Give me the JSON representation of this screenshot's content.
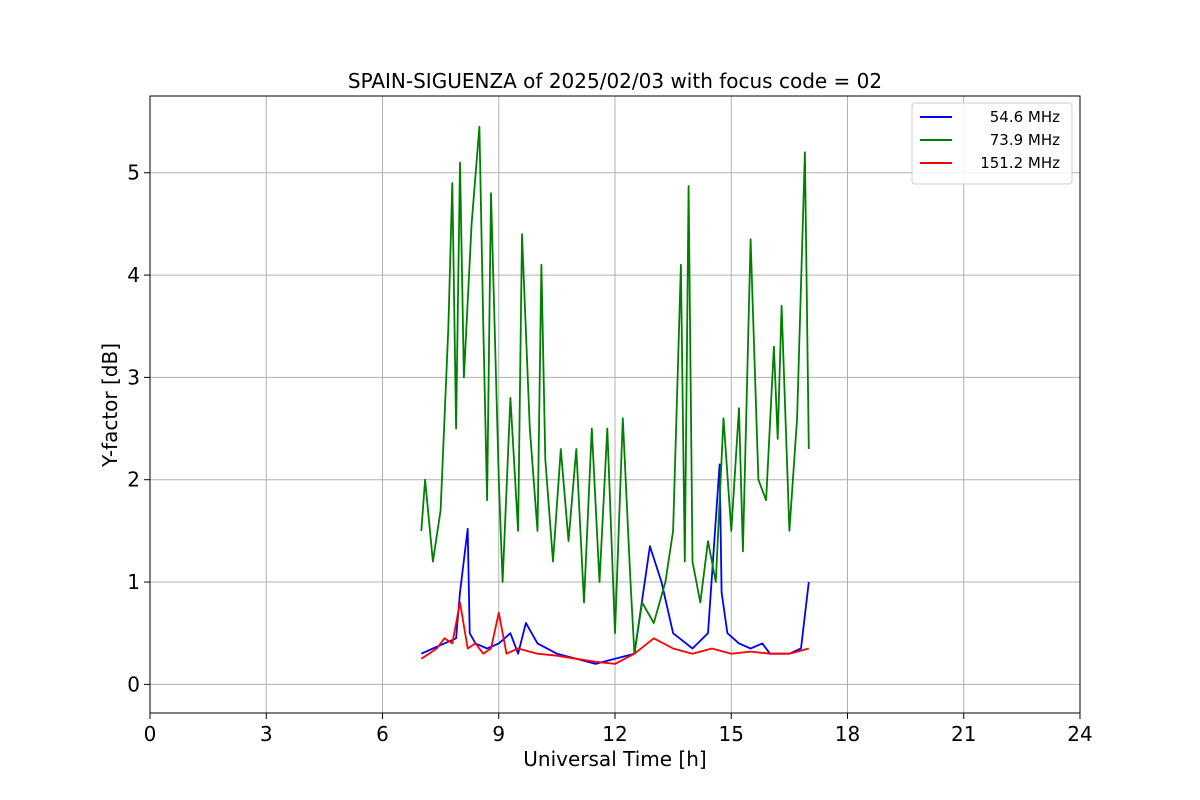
{
  "chart_data": {
    "type": "line",
    "title": "SPAIN-SIGUENZA of 2025/02/03 with focus code = 02",
    "xlabel": "Universal Time [h]",
    "ylabel": "Y-factor [dB]",
    "xlim": [
      0,
      24
    ],
    "ylim": [
      -0.28,
      5.75
    ],
    "xticks": [
      0,
      3,
      6,
      9,
      12,
      15,
      18,
      21,
      24
    ],
    "yticks": [
      0,
      1,
      2,
      3,
      4,
      5
    ],
    "xtick_labels": [
      "0",
      "3",
      "6",
      "9",
      "12",
      "15",
      "18",
      "21",
      "24"
    ],
    "ytick_labels": [
      "0",
      "1",
      "2",
      "3",
      "4",
      "5"
    ],
    "grid": true,
    "legend_position": "top-right",
    "series": [
      {
        "name": "54.6 MHz",
        "color": "#0000ff",
        "x": [
          7.0,
          7.3,
          7.6,
          7.9,
          8.0,
          8.2,
          8.25,
          8.4,
          8.7,
          9.0,
          9.3,
          9.5,
          9.7,
          10.0,
          10.5,
          11.0,
          11.5,
          12.0,
          12.5,
          12.9,
          13.2,
          13.5,
          14.0,
          14.4,
          14.7,
          14.75,
          14.9,
          15.2,
          15.5,
          15.8,
          16.0,
          16.5,
          16.8,
          17.0
        ],
        "y": [
          0.3,
          0.35,
          0.4,
          0.45,
          0.9,
          1.52,
          0.5,
          0.4,
          0.35,
          0.4,
          0.5,
          0.3,
          0.6,
          0.4,
          0.3,
          0.25,
          0.2,
          0.25,
          0.3,
          1.35,
          1.0,
          0.5,
          0.35,
          0.5,
          2.15,
          0.9,
          0.5,
          0.4,
          0.35,
          0.4,
          0.3,
          0.3,
          0.35,
          1.0
        ]
      },
      {
        "name": "73.9 MHz",
        "color": "#008000",
        "x": [
          7.0,
          7.1,
          7.3,
          7.5,
          7.7,
          7.8,
          7.9,
          8.0,
          8.1,
          8.3,
          8.5,
          8.6,
          8.7,
          8.8,
          9.0,
          9.1,
          9.3,
          9.5,
          9.6,
          9.8,
          10.0,
          10.1,
          10.2,
          10.4,
          10.6,
          10.8,
          11.0,
          11.2,
          11.4,
          11.6,
          11.8,
          12.0,
          12.2,
          12.4,
          12.5,
          12.7,
          13.0,
          13.3,
          13.5,
          13.7,
          13.8,
          13.9,
          14.0,
          14.2,
          14.4,
          14.6,
          14.8,
          15.0,
          15.2,
          15.3,
          15.5,
          15.7,
          15.9,
          16.1,
          16.2,
          16.3,
          16.5,
          16.7,
          16.9,
          17.0
        ],
        "y": [
          1.5,
          2.0,
          1.2,
          1.7,
          3.5,
          4.9,
          2.5,
          5.1,
          3.0,
          4.5,
          5.45,
          3.5,
          1.8,
          4.8,
          2.0,
          1.0,
          2.8,
          1.5,
          4.4,
          2.5,
          1.5,
          4.1,
          2.2,
          1.2,
          2.3,
          1.4,
          2.3,
          0.8,
          2.5,
          1.0,
          2.5,
          0.5,
          2.6,
          1.0,
          0.3,
          0.8,
          0.6,
          1.0,
          1.5,
          4.1,
          1.2,
          4.87,
          1.2,
          0.8,
          1.4,
          1.0,
          2.6,
          1.5,
          2.7,
          1.3,
          4.35,
          2.0,
          1.8,
          3.3,
          2.4,
          3.7,
          1.5,
          2.6,
          5.2,
          2.3
        ]
      },
      {
        "name": "151.2 MHz",
        "color": "#ff0000",
        "x": [
          7.0,
          7.2,
          7.4,
          7.6,
          7.8,
          8.0,
          8.2,
          8.4,
          8.6,
          8.8,
          9.0,
          9.2,
          9.5,
          10.0,
          10.5,
          11.0,
          11.5,
          12.0,
          12.5,
          13.0,
          13.5,
          14.0,
          14.5,
          15.0,
          15.5,
          16.0,
          16.5,
          17.0
        ],
        "y": [
          0.25,
          0.3,
          0.35,
          0.45,
          0.4,
          0.8,
          0.35,
          0.4,
          0.3,
          0.35,
          0.7,
          0.3,
          0.35,
          0.3,
          0.28,
          0.25,
          0.22,
          0.2,
          0.3,
          0.45,
          0.35,
          0.3,
          0.35,
          0.3,
          0.32,
          0.3,
          0.3,
          0.35
        ]
      }
    ]
  }
}
